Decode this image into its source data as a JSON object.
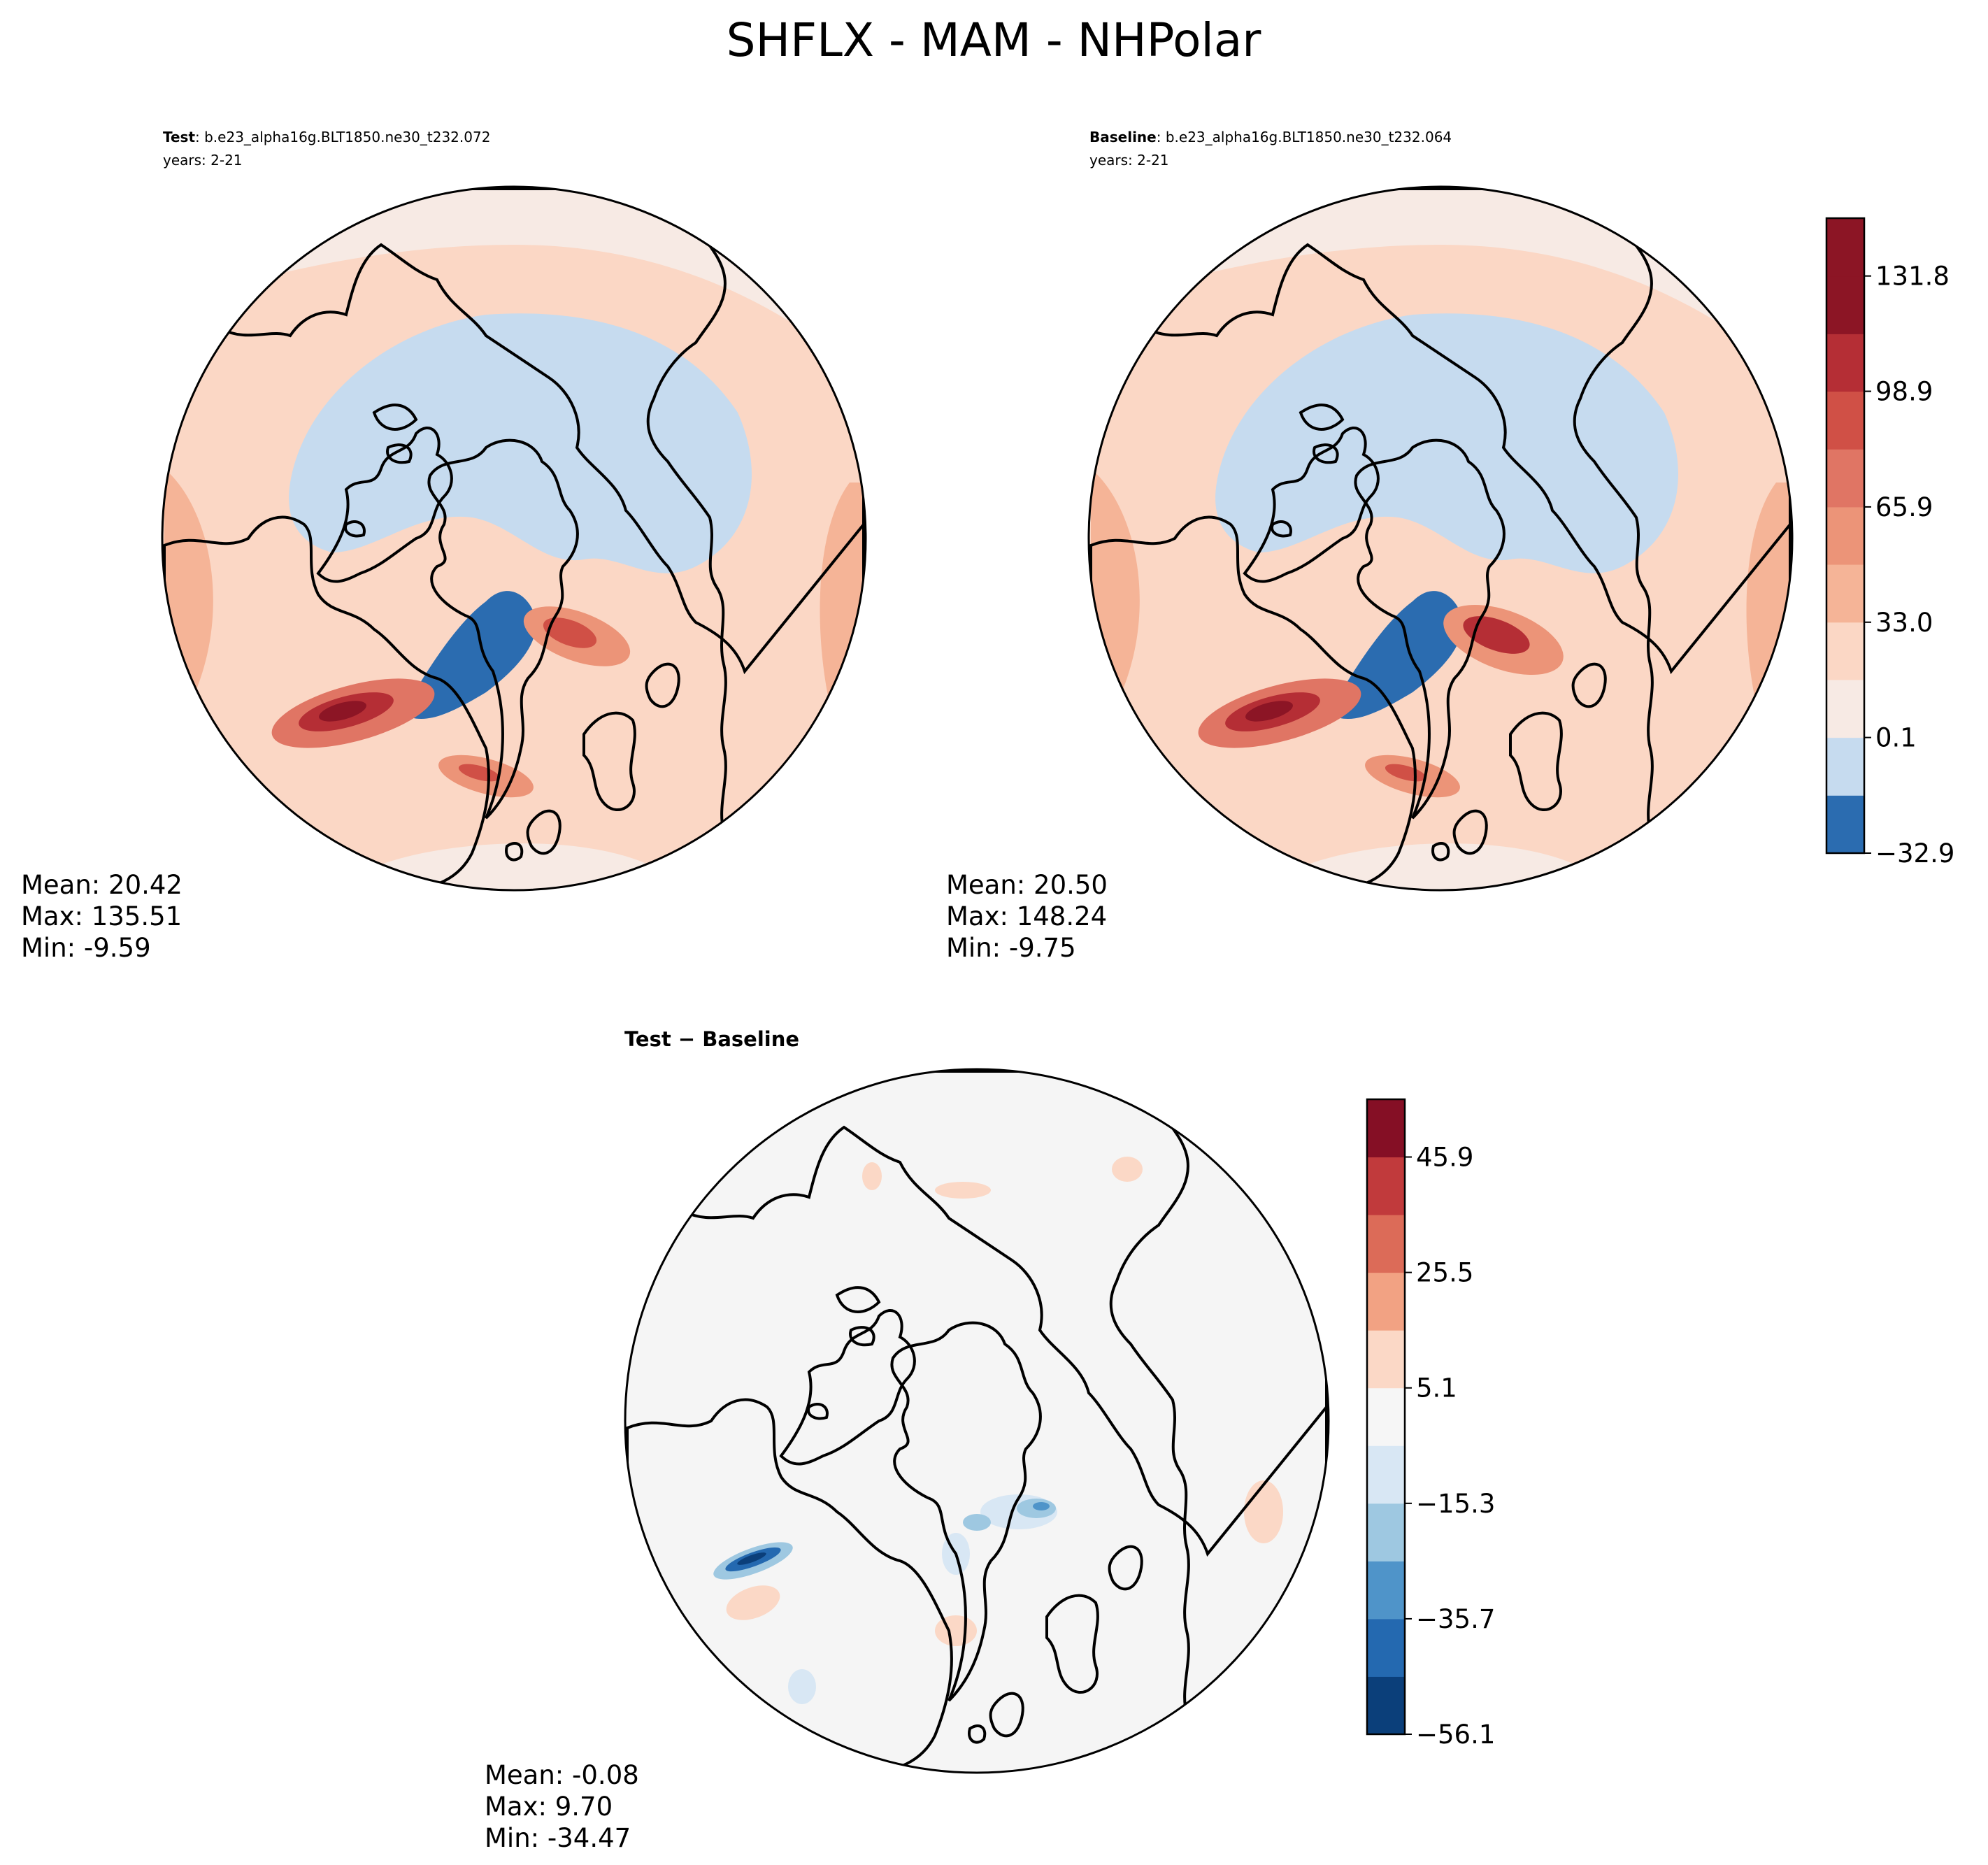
{
  "title": "SHFLX - MAM - NHPolar",
  "colors": {
    "land_outline": "#000000",
    "abs_levels": [
      "#2b6cb0",
      "#c6dbef",
      "#f7eae4",
      "#fbd7c5",
      "#f5b497",
      "#ec9478",
      "#e07564",
      "#d05046",
      "#b52e35",
      "#8c1525"
    ],
    "diff_levels": [
      "#0b3f7a",
      "#2469b0",
      "#4f94c9",
      "#9ec8e1",
      "#d8e7f4",
      "#f6f6f6",
      "#fbd8c6",
      "#f2a283",
      "#dc6b58",
      "#c13a3c",
      "#850f25"
    ],
    "diff_background": "#f5f5f5"
  },
  "panels": {
    "test": {
      "label_bold": "Test",
      "case": ": b.e23_alpha16g.BLT1850.ne30_t232.072",
      "years": "years: 2-21",
      "stats": {
        "mean": "Mean: 20.42",
        "max": "Max: 135.51",
        "min": "Min: -9.59"
      }
    },
    "baseline": {
      "label_bold": "Baseline",
      "case": ": b.e23_alpha16g.BLT1850.ne30_t232.064",
      "years": "years: 2-21",
      "stats": {
        "mean": "Mean: 20.50",
        "max": "Max: 148.24",
        "min": "Min: -9.75"
      }
    },
    "diff": {
      "label": "Test − Baseline",
      "stats": {
        "mean": "Mean: -0.08",
        "max": "Max:  9.70",
        "min": "Min: -34.47"
      }
    }
  },
  "chart_data": [
    {
      "type": "heatmap",
      "title": "Test",
      "projection": "north-polar-stereographic",
      "variable": "SHFLX",
      "season": "MAM",
      "mean": 20.42,
      "max": 135.51,
      "min": -9.59
    },
    {
      "type": "heatmap",
      "title": "Baseline",
      "projection": "north-polar-stereographic",
      "variable": "SHFLX",
      "season": "MAM",
      "mean": 20.5,
      "max": 148.24,
      "min": -9.75,
      "colorbar": {
        "levels": [
          -32.9,
          -16.4,
          0.1,
          16.6,
          33.0,
          49.5,
          65.9,
          82.4,
          98.9,
          115.3,
          131.8,
          148.3
        ],
        "tick_labels": [
          "−32.9",
          "0.1",
          "33.0",
          "65.9",
          "98.9",
          "131.8"
        ],
        "ticks": [
          -32.9,
          0.1,
          33.0,
          65.9,
          98.9,
          131.8
        ]
      }
    },
    {
      "type": "heatmap",
      "title": "Test − Baseline",
      "projection": "north-polar-stereographic",
      "mean": -0.08,
      "max": 9.7,
      "min": -34.47,
      "colorbar": {
        "levels": [
          -56.1,
          -45.9,
          -35.7,
          -25.5,
          -15.3,
          -5.1,
          5.1,
          15.3,
          25.5,
          35.7,
          45.9,
          56.1
        ],
        "tick_labels": [
          "−56.1",
          "−35.7",
          "−15.3",
          "5.1",
          "25.5",
          "45.9"
        ],
        "ticks": [
          -56.1,
          -35.7,
          -15.3,
          5.1,
          25.5,
          45.9
        ]
      }
    }
  ]
}
